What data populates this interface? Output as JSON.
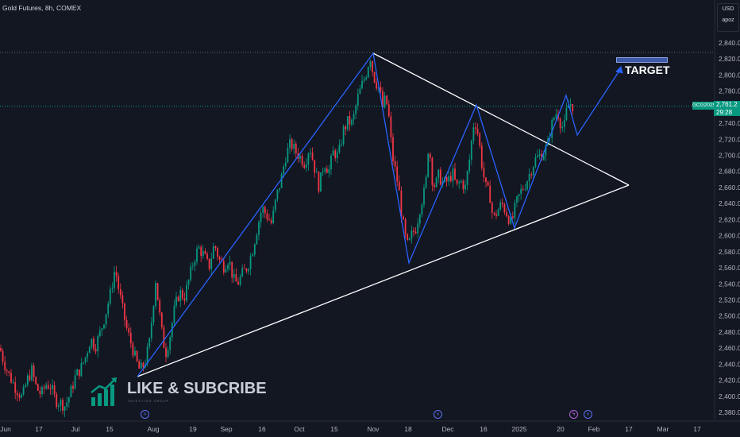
{
  "header": {
    "symbol_title": "Gold Futures, 8h, COMEX"
  },
  "price_scale": {
    "currency": "USD",
    "mode": "apoz",
    "tick_labels": [
      "2,840.0",
      "2,820.0",
      "2,800.0",
      "2,780.0",
      "2,760.0",
      "2,740.0",
      "2,720.0",
      "2,700.0",
      "2,680.0",
      "2,660.0",
      "2,640.0",
      "2,620.0",
      "2,600.0",
      "2,580.0",
      "2,560.0",
      "2,540.0",
      "2,520.0",
      "2,500.0",
      "2,480.0",
      "2,460.0",
      "2,440.0",
      "2,420.0",
      "2,400.0",
      "2,380.0"
    ],
    "current_symbol": "GCG2025",
    "current_price": "2,761.2",
    "countdown": "29:28"
  },
  "time_scale": {
    "tick_labels": [
      "Jun",
      "17",
      "Jul",
      "15",
      "Aug",
      "19",
      "Sep",
      "16",
      "Oct",
      "15",
      "Nov",
      "18",
      "Dec",
      "16",
      "2025",
      "20",
      "Feb",
      "17",
      "Mar",
      "17"
    ]
  },
  "annotations": {
    "target_label": "TARGET",
    "watermark_title": "LIKE & SUBCRIBE",
    "watermark_subtitle": "INVESTING GROUP"
  },
  "colors": {
    "background": "#131722",
    "up_candle": "#089981",
    "down_candle": "#f23645",
    "pattern_line": "#2962ff",
    "triangle_line": "#ffffff",
    "target_bar": "#3d5aa8"
  },
  "chart_data": {
    "type": "candlestick",
    "title": "Gold Futures, 8h, COMEX",
    "ylim": [
      2370,
      2850
    ],
    "current_price": 2761.2,
    "close_path": [
      [
        0,
        2460
      ],
      [
        5,
        2442
      ],
      [
        12,
        2425
      ],
      [
        20,
        2410
      ],
      [
        28,
        2398
      ],
      [
        34,
        2420
      ],
      [
        40,
        2432
      ],
      [
        46,
        2410
      ],
      [
        52,
        2402
      ],
      [
        58,
        2415
      ],
      [
        64,
        2412
      ],
      [
        70,
        2395
      ],
      [
        76,
        2392
      ],
      [
        82,
        2388
      ],
      [
        88,
        2402
      ],
      [
        95,
        2425
      ],
      [
        102,
        2435
      ],
      [
        108,
        2450
      ],
      [
        114,
        2472
      ],
      [
        120,
        2462
      ],
      [
        127,
        2482
      ],
      [
        133,
        2503
      ],
      [
        139,
        2528
      ],
      [
        145,
        2560
      ],
      [
        150,
        2530
      ],
      [
        155,
        2505
      ],
      [
        160,
        2482
      ],
      [
        166,
        2463
      ],
      [
        171,
        2445
      ],
      [
        176,
        2432
      ],
      [
        182,
        2440
      ],
      [
        188,
        2465
      ],
      [
        192,
        2505
      ],
      [
        196,
        2545
      ],
      [
        200,
        2510
      ],
      [
        205,
        2470
      ],
      [
        209,
        2455
      ],
      [
        214,
        2475
      ],
      [
        220,
        2510
      ],
      [
        226,
        2530
      ],
      [
        232,
        2523
      ],
      [
        238,
        2545
      ],
      [
        244,
        2570
      ],
      [
        250,
        2585
      ],
      [
        257,
        2575
      ],
      [
        263,
        2560
      ],
      [
        270,
        2590
      ],
      [
        276,
        2570
      ],
      [
        282,
        2562
      ],
      [
        288,
        2572
      ],
      [
        294,
        2545
      ],
      [
        299,
        2540
      ],
      [
        305,
        2552
      ],
      [
        312,
        2562
      ],
      [
        318,
        2582
      ],
      [
        324,
        2610
      ],
      [
        330,
        2635
      ],
      [
        336,
        2625
      ],
      [
        342,
        2615
      ],
      [
        348,
        2648
      ],
      [
        354,
        2670
      ],
      [
        360,
        2700
      ],
      [
        366,
        2715
      ],
      [
        372,
        2705
      ],
      [
        378,
        2698
      ],
      [
        384,
        2690
      ],
      [
        390,
        2712
      ],
      [
        396,
        2685
      ],
      [
        402,
        2660
      ],
      [
        408,
        2692
      ],
      [
        414,
        2680
      ],
      [
        420,
        2705
      ],
      [
        426,
        2698
      ],
      [
        432,
        2730
      ],
      [
        438,
        2742
      ],
      [
        444,
        2740
      ],
      [
        450,
        2770
      ],
      [
        456,
        2788
      ],
      [
        462,
        2805
      ],
      [
        466,
        2825
      ],
      [
        470,
        2800
      ],
      [
        474,
        2790
      ],
      [
        478,
        2782
      ],
      [
        482,
        2760
      ],
      [
        486,
        2772
      ],
      [
        490,
        2745
      ],
      [
        494,
        2700
      ],
      [
        498,
        2680
      ],
      [
        502,
        2660
      ],
      [
        506,
        2625
      ],
      [
        510,
        2600
      ],
      [
        514,
        2585
      ],
      [
        518,
        2600
      ],
      [
        524,
        2610
      ],
      [
        530,
        2640
      ],
      [
        536,
        2660
      ],
      [
        540,
        2720
      ],
      [
        544,
        2672
      ],
      [
        548,
        2660
      ],
      [
        552,
        2675
      ],
      [
        558,
        2665
      ],
      [
        564,
        2668
      ],
      [
        570,
        2678
      ],
      [
        575,
        2660
      ],
      [
        580,
        2668
      ],
      [
        586,
        2660
      ],
      [
        592,
        2700
      ],
      [
        596,
        2738
      ],
      [
        600,
        2740
      ],
      [
        604,
        2712
      ],
      [
        608,
        2680
      ],
      [
        612,
        2660
      ],
      [
        617,
        2650
      ],
      [
        621,
        2620
      ],
      [
        626,
        2630
      ],
      [
        632,
        2640
      ],
      [
        638,
        2628
      ],
      [
        644,
        2615
      ],
      [
        650,
        2640
      ],
      [
        656,
        2655
      ],
      [
        662,
        2665
      ],
      [
        668,
        2680
      ],
      [
        674,
        2695
      ],
      [
        680,
        2700
      ],
      [
        686,
        2705
      ],
      [
        690,
        2715
      ],
      [
        694,
        2735
      ],
      [
        698,
        2748
      ],
      [
        702,
        2755
      ],
      [
        706,
        2740
      ],
      [
        710,
        2732
      ],
      [
        714,
        2758
      ],
      [
        718,
        2765
      ],
      [
        722,
        2761
      ]
    ],
    "pattern_lines": [
      {
        "name": "triangle-upper",
        "color": "#ffffff",
        "x": [
          0.505,
          0.85
        ],
        "y": [
          2827,
          2663
        ]
      },
      {
        "name": "triangle-lower",
        "color": "#ffffff",
        "x": [
          0.185,
          0.85
        ],
        "y": [
          2427,
          2663
        ]
      }
    ],
    "target_price": 2820
  }
}
